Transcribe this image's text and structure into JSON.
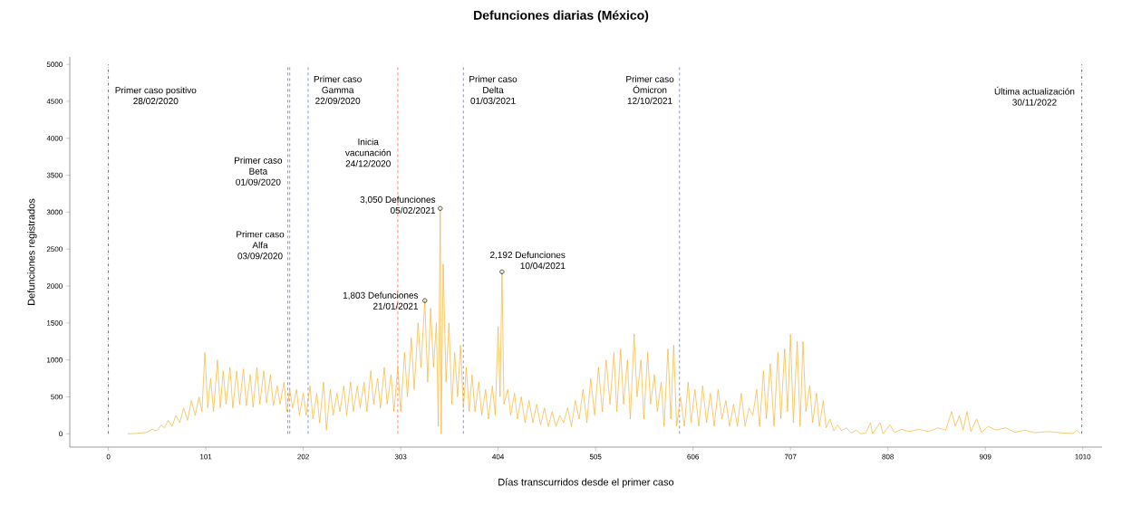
{
  "chart_data": {
    "type": "line",
    "title": "Defunciones diarias (México)",
    "xlabel": "Días transcurridos desde el primer caso",
    "ylabel": "Defunciones registrados",
    "xlim": [
      -40,
      1030
    ],
    "ylim": [
      -180,
      5100
    ],
    "xticks": [
      0,
      101,
      202,
      303,
      404,
      505,
      606,
      707,
      808,
      909,
      1010
    ],
    "yticks": [
      0,
      500,
      1000,
      1500,
      2000,
      2500,
      3000,
      3500,
      4000,
      4500,
      5000
    ],
    "grid": false,
    "series": [
      {
        "type": "line",
        "color": "#f2b535",
        "marker": "none",
        "x": [
          20,
          30,
          40,
          45,
          50,
          55,
          58,
          62,
          66,
          70,
          74,
          78,
          82,
          86,
          90,
          94,
          97,
          100,
          103,
          106,
          109,
          113,
          116,
          119,
          122,
          126,
          129,
          133,
          136,
          140,
          143,
          147,
          150,
          154,
          157,
          161,
          164,
          168,
          171,
          175,
          178,
          182,
          185,
          188,
          191,
          195,
          198,
          202,
          205,
          209,
          212,
          216,
          219,
          223,
          226,
          230,
          233,
          237,
          240,
          244,
          247,
          251,
          254,
          258,
          261,
          265,
          268,
          272,
          275,
          279,
          282,
          286,
          289,
          293,
          296,
          300,
          303,
          307,
          310,
          314,
          317,
          321,
          324,
          328,
          331,
          334,
          337,
          340,
          342,
          344,
          345,
          347,
          350,
          353,
          356,
          359,
          362,
          365,
          368,
          371,
          374,
          377,
          380,
          384,
          387,
          391,
          394,
          398,
          401,
          404,
          406,
          408,
          410,
          414,
          417,
          421,
          424,
          428,
          432,
          436,
          440,
          444,
          448,
          452,
          456,
          460,
          464,
          468,
          472,
          476,
          480,
          484,
          488,
          492,
          496,
          500,
          504,
          508,
          512,
          516,
          520,
          524,
          527,
          531,
          534,
          538,
          541,
          545,
          548,
          552,
          555,
          559,
          562,
          566,
          569,
          573,
          576,
          580,
          583,
          586,
          589,
          593,
          597,
          601,
          604,
          608,
          612,
          616,
          620,
          624,
          628,
          632,
          636,
          640,
          644,
          648,
          652,
          656,
          660,
          664,
          668,
          672,
          675,
          679,
          682,
          686,
          690,
          694,
          697,
          701,
          704,
          707,
          710,
          714,
          717,
          720,
          723,
          727,
          730,
          734,
          737,
          741,
          744,
          748,
          752,
          756,
          760,
          765,
          770,
          775,
          780,
          785,
          790,
          792,
          800,
          803,
          810,
          815,
          822,
          830,
          840,
          850,
          860,
          868,
          874,
          878,
          882,
          886,
          890,
          894,
          900,
          905,
          912,
          920,
          930,
          940,
          950,
          960,
          975,
          990,
          1000,
          1004,
          1007
        ],
        "values": [
          0,
          5,
          20,
          60,
          40,
          120,
          80,
          180,
          100,
          250,
          150,
          350,
          180,
          450,
          250,
          500,
          300,
          1100,
          350,
          750,
          300,
          1000,
          350,
          850,
          400,
          900,
          350,
          850,
          400,
          880,
          380,
          800,
          360,
          900,
          400,
          850,
          420,
          800,
          380,
          650,
          400,
          700,
          300,
          600,
          350,
          600,
          250,
          550,
          250,
          650,
          200,
          550,
          150,
          700,
          50,
          600,
          250,
          550,
          300,
          650,
          250,
          700,
          300,
          650,
          350,
          700,
          300,
          850,
          400,
          750,
          350,
          900,
          400,
          800,
          300,
          900,
          300,
          1100,
          500,
          1300,
          600,
          1500,
          900,
          1803,
          700,
          1700,
          900,
          1500,
          100,
          3050,
          0,
          2300,
          700,
          1500,
          400,
          1100,
          500,
          1200,
          350,
          900,
          300,
          800,
          300,
          700,
          250,
          600,
          200,
          650,
          250,
          1450,
          500,
          2192,
          400,
          600,
          250,
          550,
          200,
          500,
          150,
          450,
          150,
          400,
          120,
          350,
          100,
          300,
          100,
          250,
          150,
          350,
          100,
          450,
          200,
          600,
          150,
          750,
          250,
          900,
          300,
          1000,
          400,
          1100,
          300,
          1150,
          400,
          1000,
          200,
          1350,
          500,
          1000,
          200,
          1100,
          400,
          800,
          300,
          700,
          100,
          1150,
          200,
          1200,
          100,
          500,
          100,
          700,
          150,
          600,
          100,
          650,
          150,
          550,
          100,
          600,
          200,
          450,
          100,
          400,
          100,
          550,
          100,
          350,
          250,
          600,
          100,
          850,
          200,
          950,
          100,
          1100,
          200,
          1150,
          300,
          1350,
          150,
          1250,
          100,
          1250,
          300,
          650,
          150,
          550,
          100,
          450,
          80,
          200,
          40,
          120,
          40,
          80,
          10,
          50,
          0,
          10,
          150,
          0,
          150,
          0,
          120,
          20,
          60,
          30,
          60,
          30,
          80,
          50,
          300,
          100,
          250,
          50,
          300,
          30,
          200,
          20,
          100,
          50,
          80,
          20,
          50,
          15,
          30,
          10,
          5,
          50,
          5
        ]
      },
      {
        "type": "scatter",
        "color": "#000000",
        "marker": "circle",
        "x": [
          328,
          344,
          408
        ],
        "values": [
          1803,
          3050,
          2192
        ]
      }
    ],
    "ref_lines": [
      {
        "axis": "x",
        "value": 0,
        "label": "Primer caso positivo 28/02/2020",
        "color": "#333333",
        "line_style": "dashdot"
      },
      {
        "axis": "x",
        "value": 186,
        "label": "Primer caso Beta 01/09/2020",
        "color": "#4169e1",
        "line_style": "dashed"
      },
      {
        "axis": "x",
        "value": 188,
        "label": "Primer caso Alfa 03/09/2020",
        "color": "#4169e1",
        "line_style": "dashed"
      },
      {
        "axis": "x",
        "value": 207,
        "label": "Primer caso Gamma 22/09/2020",
        "color": "#4169e1",
        "line_style": "dashed"
      },
      {
        "axis": "x",
        "value": 300,
        "label": "Inicia vacunación 24/12/2020",
        "color": "#ff4040",
        "line_style": "dashed"
      },
      {
        "axis": "x",
        "value": 368,
        "label": "Primer caso Delta 01/03/2021",
        "color": "#4169e1",
        "line_style": "dashed"
      },
      {
        "axis": "x",
        "value": 592,
        "label": "Primer caso Ómicron 12/10/2021",
        "color": "#4169e1",
        "line_style": "dashed"
      },
      {
        "axis": "x",
        "value": 1009,
        "label": "Última actualización 30/11/2022",
        "color": "#333333",
        "line_style": "dashdot"
      }
    ],
    "annotations": [
      {
        "text": "1,803 Defunciones 21/01/2021",
        "x": 328,
        "y": 1803
      },
      {
        "text": "3,050 Defunciones 05/02/2021",
        "x": 344,
        "y": 3050
      },
      {
        "text": "2,192 Defunciones 10/04/2021",
        "x": 408,
        "y": 2192
      }
    ]
  }
}
